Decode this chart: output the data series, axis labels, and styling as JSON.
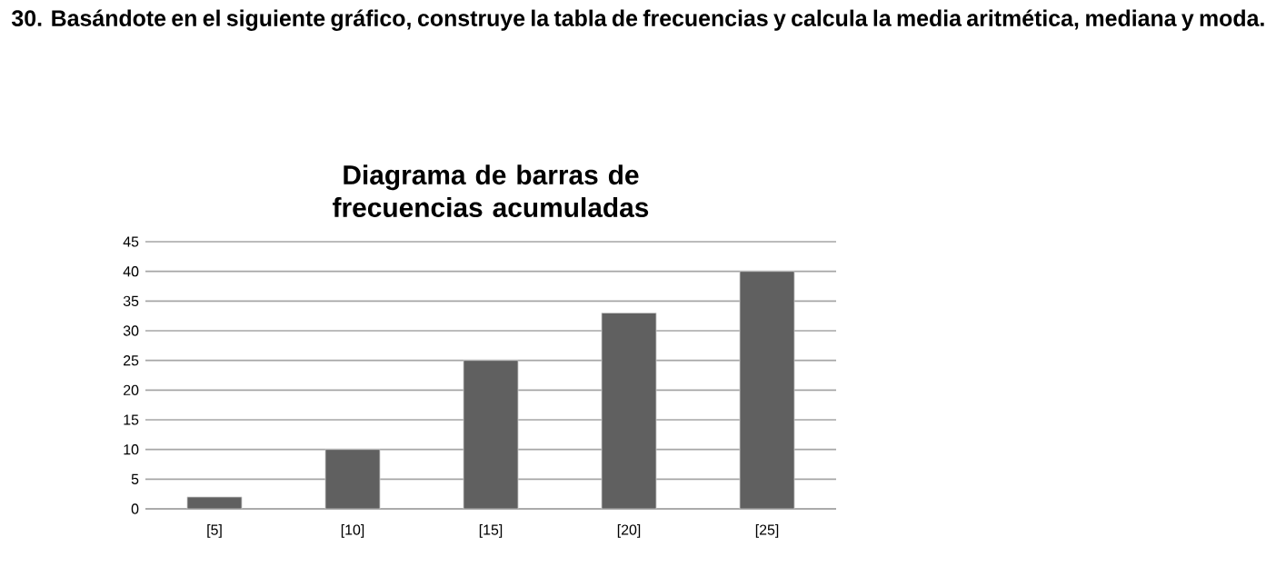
{
  "chart_data": {
    "type": "bar",
    "title": "Diagrama de barras de frecuencias acumuladas",
    "annotations": [
      "30. Basándote en el siguiente gráfico, construye la tabla de frecuencias y calcula la media aritmética, mediana y moda."
    ],
    "categories": [
      "[5]",
      "[10]",
      "[15]",
      "[20]",
      "[25]"
    ],
    "values": [
      2,
      10,
      25,
      33,
      40
    ],
    "color": "#606060",
    "ylim": [
      0,
      45
    ],
    "yticks": [
      0,
      5,
      10,
      15,
      20,
      25,
      30,
      35,
      40,
      45
    ],
    "grid": "y"
  }
}
